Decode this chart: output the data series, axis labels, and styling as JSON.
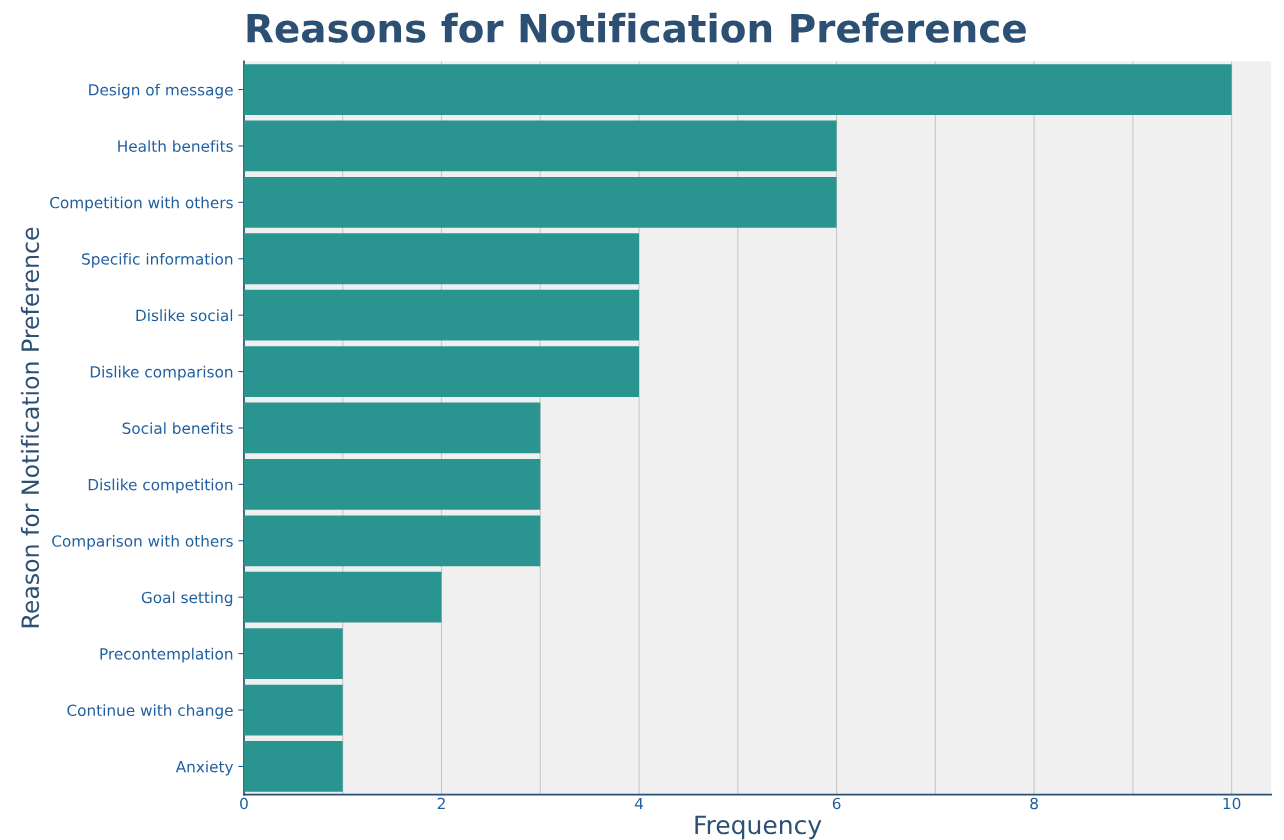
{
  "chart_data": {
    "type": "bar",
    "orientation": "horizontal",
    "title": "Reasons for Notification Preference",
    "xlabel": "Frequency",
    "ylabel": "Reason for Notification Preference",
    "categories": [
      "Design of message",
      "Health benefits",
      "Competition with others",
      "Specific information",
      "Dislike social",
      "Dislike comparison",
      "Social benefits",
      "Dislike competition",
      "Comparison with others",
      "Goal setting",
      "Precontemplation",
      "Continue with change",
      "Anxiety"
    ],
    "values": [
      10,
      6,
      6,
      4,
      4,
      4,
      3,
      3,
      3,
      2,
      1,
      1,
      1
    ],
    "color": "#2a9490",
    "xlim": [
      0,
      10.4
    ],
    "xticks": [
      0,
      {
        "value": 1,
        "label": null
      },
      2,
      {
        "value": 3,
        "label": null
      },
      4,
      {
        "value": 5,
        "label": null
      },
      6,
      {
        "value": 7,
        "label": null
      },
      8,
      {
        "value": 9,
        "label": null
      },
      10
    ],
    "grid": true
  }
}
